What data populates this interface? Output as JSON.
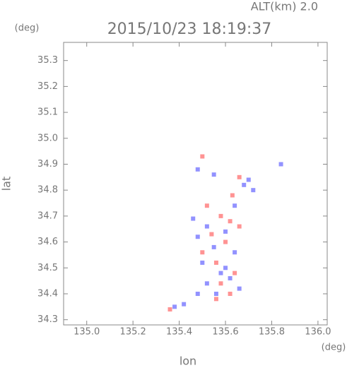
{
  "chart_data": {
    "type": "scatter",
    "title": "2015/10/23 18:19:37",
    "subtitle": "ALT(km) 2.0",
    "x_label": "lon",
    "y_label": "lat",
    "x_unit": "(deg)",
    "y_unit": "(deg)",
    "xlim": [
      134.9,
      136.04
    ],
    "ylim": [
      34.28,
      35.37
    ],
    "xticks": [
      {
        "value": 135,
        "label": "135.0"
      },
      135.2,
      135.4,
      135.6,
      135.8,
      {
        "value": 136,
        "label": "136.0"
      }
    ],
    "yticks": [
      34.3,
      34.4,
      34.5,
      34.6,
      34.7,
      34.8,
      34.9,
      {
        "value": 35,
        "label": "35.0"
      },
      35.1,
      35.2,
      35.3
    ],
    "series": [
      {
        "color": "#7f7fff",
        "x": [
          135.48,
          135.55,
          135.68,
          135.72,
          135.84,
          135.46,
          135.52,
          135.6,
          135.48,
          135.55,
          135.64,
          135.5,
          135.58,
          135.62,
          135.52,
          135.66,
          135.48,
          135.42,
          135.38,
          135.6,
          135.56,
          135.64,
          135.7
        ],
        "y": [
          34.88,
          34.86,
          34.82,
          34.8,
          34.9,
          34.69,
          34.66,
          34.64,
          34.62,
          34.58,
          34.56,
          34.52,
          34.48,
          34.46,
          34.44,
          34.42,
          34.4,
          34.36,
          34.35,
          34.5,
          34.4,
          34.74,
          34.84
        ]
      },
      {
        "color": "#ff8080",
        "x": [
          135.5,
          135.66,
          135.63,
          135.58,
          135.62,
          135.54,
          135.6,
          135.5,
          135.56,
          135.64,
          135.58,
          135.62,
          135.56,
          135.36,
          135.52,
          135.66
        ],
        "y": [
          34.93,
          34.85,
          34.78,
          34.7,
          34.68,
          34.63,
          34.6,
          34.56,
          34.52,
          34.48,
          34.44,
          34.4,
          34.38,
          34.34,
          34.74,
          34.66
        ]
      }
    ]
  }
}
